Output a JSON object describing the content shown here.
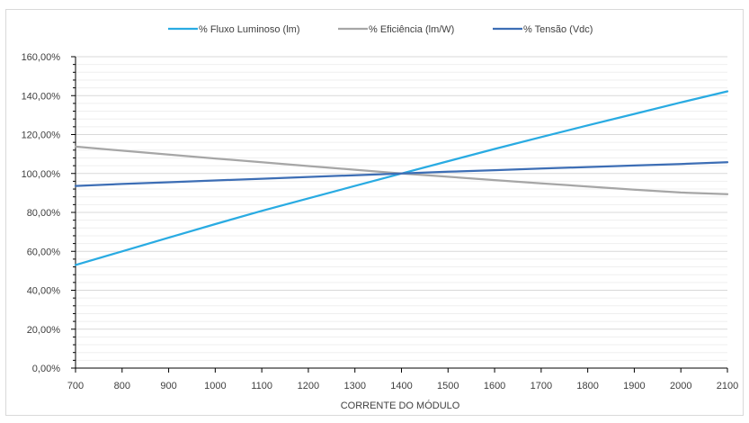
{
  "chart_data": {
    "type": "line",
    "xlabel": "CORRENTE DO MÓDULO",
    "ylabel": "",
    "x": [
      700,
      800,
      900,
      1000,
      1100,
      1200,
      1300,
      1400,
      1500,
      1600,
      1700,
      1800,
      1900,
      2000,
      2100
    ],
    "x_tick_labels": [
      "700",
      "800",
      "900",
      "1000",
      "1100",
      "1200",
      "1300",
      "1400",
      "1500",
      "1600",
      "1700",
      "1800",
      "1900",
      "2000",
      "2100"
    ],
    "ylim": [
      0,
      160
    ],
    "y_ticks": [
      0,
      20,
      40,
      60,
      80,
      100,
      120,
      140,
      160
    ],
    "y_tick_labels": [
      "0,00%",
      "20,00%",
      "40,00%",
      "60,00%",
      "80,00%",
      "100,00%",
      "120,00%",
      "140,00%",
      "160,00%"
    ],
    "grid": true,
    "legend_position": "top",
    "series": [
      {
        "name": "% Fluxo Luminoso (lm)",
        "color": "#29abe2",
        "values": [
          53,
          60,
          67,
          74,
          80.8,
          87.2,
          93.6,
          100,
          106.3,
          112.6,
          118.7,
          124.7,
          130.6,
          136.5,
          142.2
        ]
      },
      {
        "name": "% Eficiência (lm/W)",
        "color": "#a6a6a6",
        "values": [
          113.8,
          111.7,
          109.7,
          107.7,
          105.8,
          103.8,
          101.9,
          100,
          98.3,
          96.6,
          94.9,
          93.3,
          91.7,
          90.2,
          89.4
        ]
      },
      {
        "name": "% Tensão (Vdc)",
        "color": "#3d6eb5",
        "values": [
          93.6,
          94.6,
          95.5,
          96.4,
          97.3,
          98.2,
          99.1,
          100,
          100.9,
          101.7,
          102.5,
          103.3,
          104.1,
          104.9,
          105.8
        ]
      }
    ]
  }
}
